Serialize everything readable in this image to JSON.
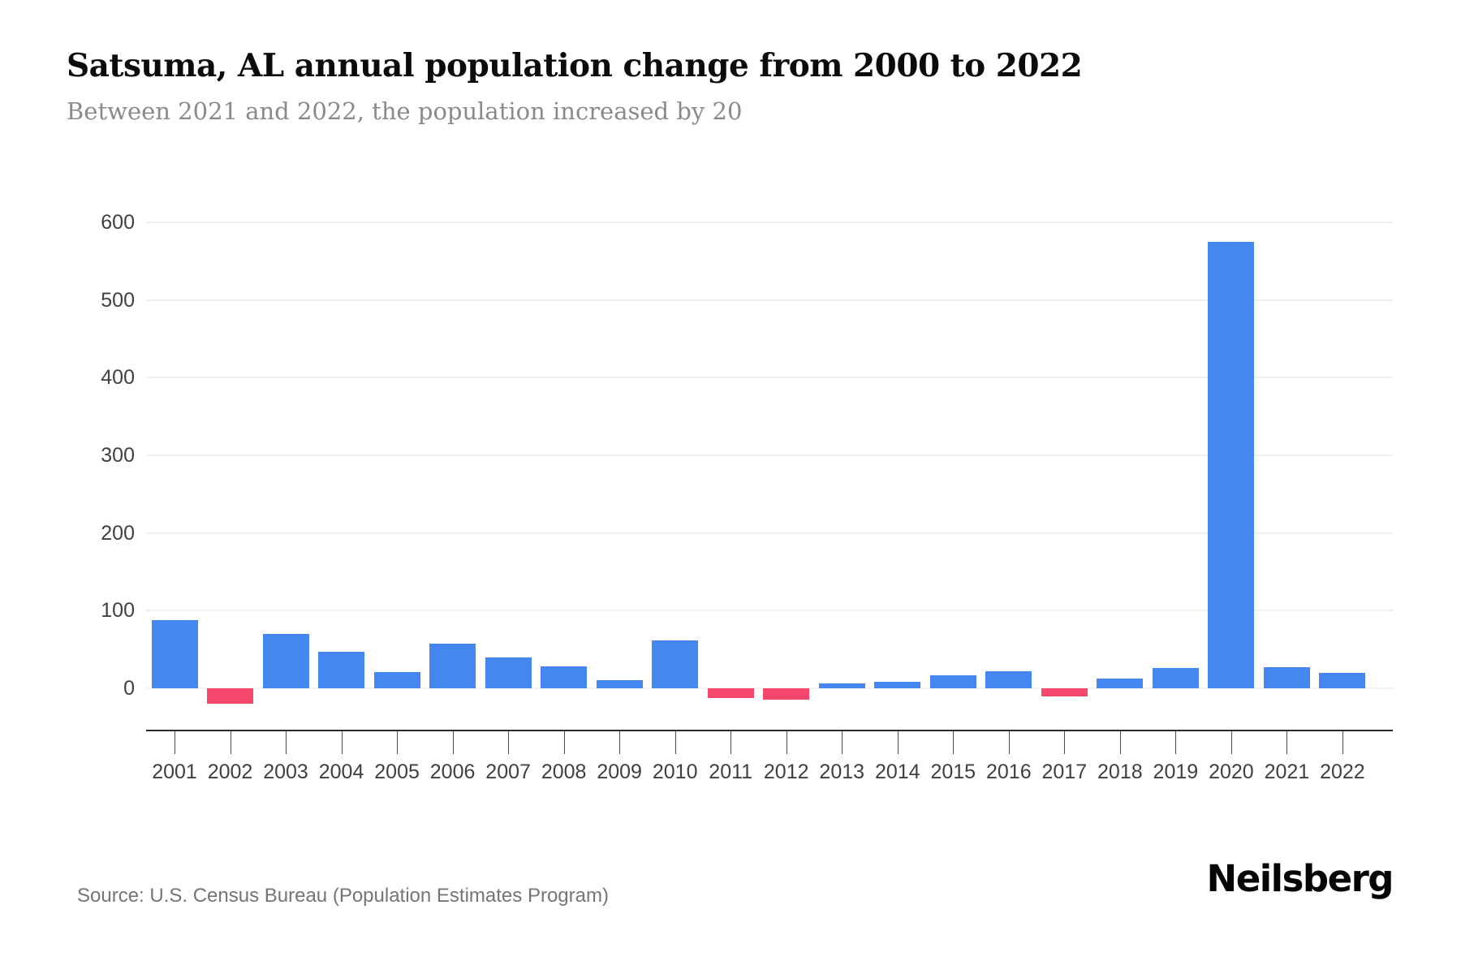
{
  "header": {
    "title": "Satsuma, AL annual population change from 2000 to 2022",
    "subtitle": "Between 2021 and 2022, the population increased by 20"
  },
  "footer": {
    "source": "Source: U.S. Census Bureau (Population Estimates Program)",
    "brand": "Neilsberg"
  },
  "colors": {
    "positive_bar": "#4686f0",
    "negative_bar": "#f4486c",
    "gridline": "#efefef",
    "axis_text": "#404040",
    "title_text": "#0b0b0b",
    "subtitle_text": "#8a8a8a",
    "source_text": "#757575"
  },
  "chart_data": {
    "type": "bar",
    "title": "Satsuma, AL annual population change from 2000 to 2022",
    "subtitle": "Between 2021 and 2022, the population increased by 20",
    "xlabel": "",
    "ylabel": "",
    "categories": [
      "2001",
      "2002",
      "2003",
      "2004",
      "2005",
      "2006",
      "2007",
      "2008",
      "2009",
      "2010",
      "2011",
      "2012",
      "2013",
      "2014",
      "2015",
      "2016",
      "2017",
      "2018",
      "2019",
      "2020",
      "2021",
      "2022"
    ],
    "values": [
      88,
      -20,
      70,
      47,
      21,
      57,
      40,
      28,
      10,
      62,
      -13,
      -15,
      6,
      8,
      17,
      22,
      -10,
      13,
      26,
      575,
      27,
      20
    ],
    "y_ticks": [
      0,
      100,
      200,
      300,
      400,
      500,
      600
    ],
    "ylim": [
      -55,
      620
    ],
    "grid": true,
    "legend": false,
    "positive_color": "#4686f0",
    "negative_color": "#f4486c"
  }
}
